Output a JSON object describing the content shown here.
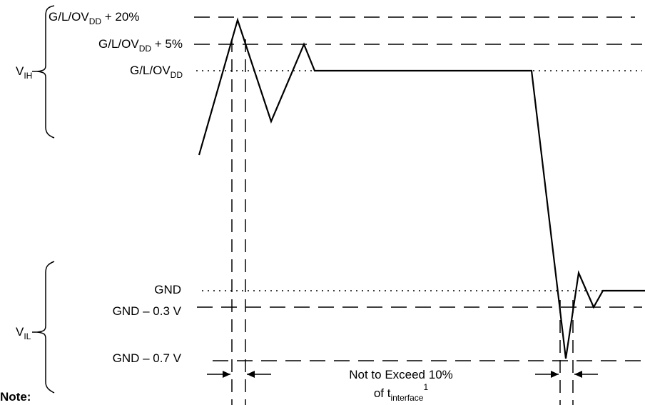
{
  "diagram": {
    "levels": {
      "ovdd_20": {
        "base": "G/L/OV",
        "sub": "DD",
        "suffix": " + 20%"
      },
      "ovdd_5": {
        "base": "G/L/OV",
        "sub": "DD",
        "suffix": " + 5%"
      },
      "ovdd": {
        "base": "G/L/OV",
        "sub": "DD"
      },
      "gnd": "GND",
      "gnd_03": "GND – 0.3 V",
      "gnd_07": "GND – 0.7 V"
    },
    "vih": {
      "base": "V",
      "sub": "IH"
    },
    "vil": {
      "base": "V",
      "sub": "IL"
    },
    "span_note": {
      "line1": "Not to Exceed 10%",
      "line2_prefix": "of t",
      "line2_sub": "interface",
      "line2_sup": "1"
    },
    "note_label": "Note:"
  }
}
